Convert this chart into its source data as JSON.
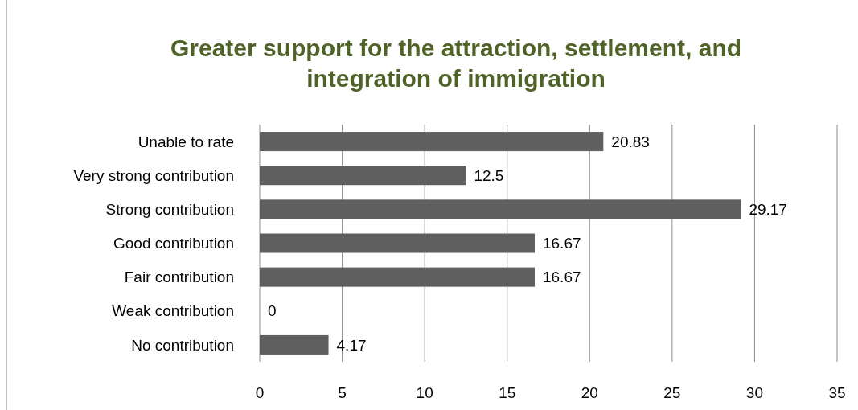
{
  "chart_data": {
    "type": "bar",
    "orientation": "horizontal",
    "title": "Greater support for the attraction, settlement, and integration of immigration",
    "categories": [
      "Unable to rate",
      "Very strong contribution",
      "Strong contribution",
      "Good contribution",
      "Fair contribution",
      "Weak contribution",
      "No contribution"
    ],
    "values": [
      20.83,
      12.5,
      29.17,
      16.67,
      16.67,
      0,
      4.17
    ],
    "color": "#5f5f5f",
    "xlim": [
      0,
      35
    ],
    "xticks": [
      0,
      5,
      10,
      15,
      20,
      25,
      30,
      35
    ],
    "grid": "x",
    "data_labels": true
  }
}
